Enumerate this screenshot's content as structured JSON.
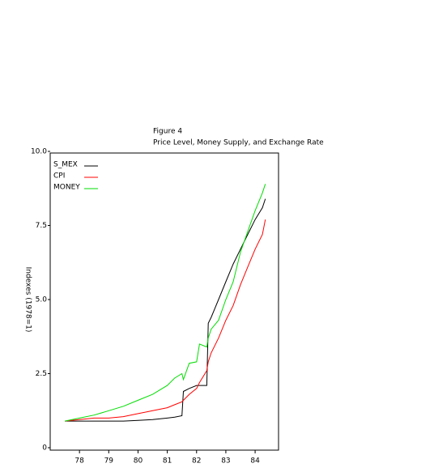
{
  "chart_data": {
    "type": "line",
    "title": "Figure 4",
    "subtitle": "Price Level, Money Supply, and Exchange Rate",
    "y_label": "Indexes (1978=1)",
    "x": [
      77.5,
      78,
      78.5,
      79,
      79.5,
      80,
      80.5,
      81,
      81.25,
      81.5,
      81.55,
      81.75,
      82,
      82.1,
      82.35,
      82.4,
      82.5,
      82.75,
      83,
      83.25,
      83.5,
      83.75,
      84,
      84.25,
      84.35
    ],
    "series": [
      {
        "name": "S_MEX",
        "color": "#000000",
        "values": [
          0.9,
          0.9,
          0.9,
          0.9,
          0.9,
          0.92,
          0.95,
          1.0,
          1.03,
          1.08,
          1.9,
          2.0,
          2.1,
          2.1,
          2.1,
          4.2,
          4.4,
          5.0,
          5.6,
          6.2,
          6.7,
          7.2,
          7.7,
          8.1,
          8.4
        ]
      },
      {
        "name": "CPI",
        "color": "#ff0000",
        "values": [
          0.9,
          0.95,
          1.0,
          1.0,
          1.05,
          1.15,
          1.25,
          1.35,
          1.45,
          1.55,
          1.6,
          1.8,
          2.0,
          2.2,
          2.6,
          2.9,
          3.2,
          3.7,
          4.3,
          4.8,
          5.5,
          6.1,
          6.7,
          7.2,
          7.7
        ]
      },
      {
        "name": "MONEY",
        "color": "#00dd00",
        "values": [
          0.9,
          1.0,
          1.1,
          1.25,
          1.4,
          1.6,
          1.8,
          2.1,
          2.35,
          2.5,
          2.3,
          2.85,
          2.9,
          3.5,
          3.4,
          3.7,
          4.0,
          4.3,
          5.0,
          5.6,
          6.6,
          7.3,
          8.0,
          8.6,
          8.9
        ]
      }
    ],
    "xlim": [
      77,
      84.8
    ],
    "xticks": [
      78,
      79,
      80,
      81,
      82,
      83,
      84
    ],
    "ylim": [
      0,
      10
    ],
    "yticks": [
      0,
      2.5,
      {
        "value": 5,
        "label": "5.0"
      },
      7.5,
      {
        "value": 10,
        "label": "10.0"
      }
    ],
    "legend": "top-left"
  }
}
